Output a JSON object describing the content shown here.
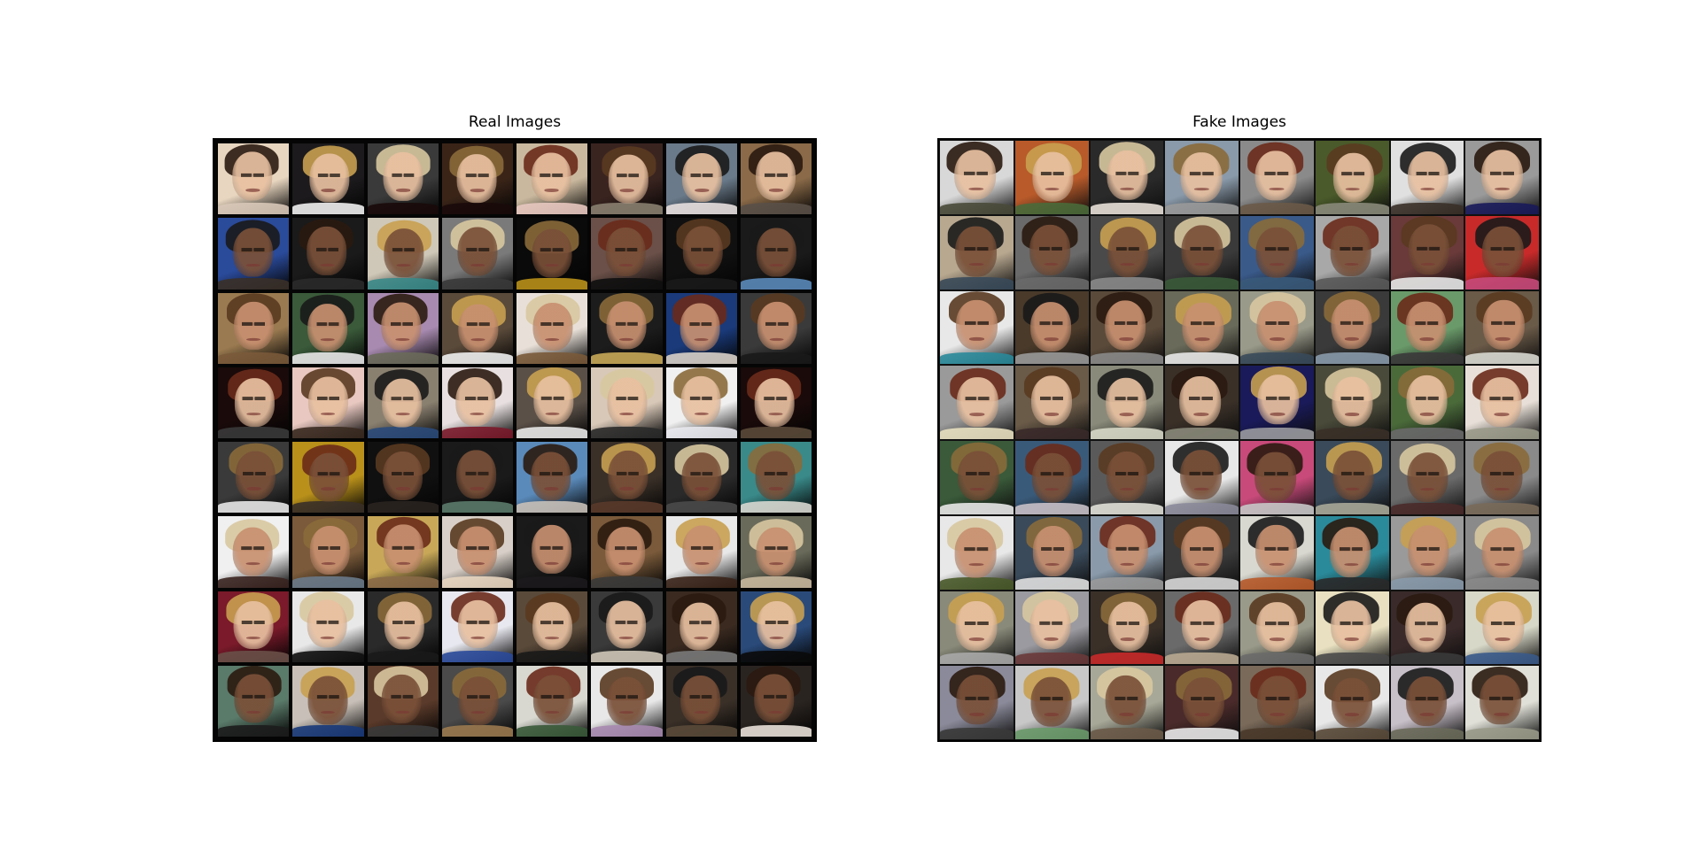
{
  "panels": {
    "real": {
      "title": "Real Images"
    },
    "fake": {
      "title": "Fake Images"
    }
  },
  "grid": {
    "rows": 8,
    "cols": 8
  },
  "colors": {
    "real_tiles": [
      [
        "#e8d6c0",
        "#1c1a1c",
        "#3a3a3a",
        "#3a2418",
        "#c9b89e",
        "#3a2420",
        "#6a7a8a",
        "#8a6a48"
      ],
      [
        "#2a4a9a",
        "#1a1a1a",
        "#cfc8b8",
        "#7a7a7a",
        "#0a0a0a",
        "#6a5048",
        "#101010",
        "#1a1a1a"
      ],
      [
        "#9a7a50",
        "#3a5a3a",
        "#a88ab0",
        "#5a4a3a",
        "#e8e0d8",
        "#1c1c1c",
        "#1a3a7a",
        "#3a3a3a"
      ],
      [
        "#1a0a0a",
        "#e8c8c0",
        "#8a8070",
        "#e8e0e0",
        "#5a5048",
        "#d8c8b8",
        "#f0f0f0",
        "#1a0a0a"
      ],
      [
        "#3a3a3a",
        "#b8901a",
        "#101010",
        "#1a1a1a",
        "#5a8aba",
        "#3a3028",
        "#2a2a2a",
        "#3a8a8a"
      ],
      [
        "#f0f0f0",
        "#7a5a3a",
        "#c8a858",
        "#d8d0c8",
        "#1a1a1a",
        "#7a5a3a",
        "#e8e8e8",
        "#6a6a5a"
      ],
      [
        "#7a1a2a",
        "#e8e8e8",
        "#2a2a2a",
        "#e8e8f0",
        "#5a4a3a",
        "#3a3a3a",
        "#3a2a20",
        "#2a4a7a"
      ],
      [
        "#5a7a6a",
        "#c8c0b8",
        "#5a3a2a",
        "#4a4a4a",
        "#d8d8d0",
        "#e8e8e8",
        "#3a3028",
        "#2a2420"
      ]
    ],
    "fake_tiles": [
      [
        "#d8d8d8",
        "#b85a2a",
        "#2a2a2a",
        "#8a9aaa",
        "#8a8a8a",
        "#4a5a2a",
        "#e0e0e0",
        "#9a9a9a"
      ],
      [
        "#b8a890",
        "#6a6a6a",
        "#4a4a4a",
        "#3a3a3a",
        "#3a5a8a",
        "#a8a8a8",
        "#6a3a3a",
        "#c82a2a"
      ],
      [
        "#e8e8e8",
        "#4a3a2a",
        "#5a4a3a",
        "#6a6a5a",
        "#9a9a8a",
        "#3a3a3a",
        "#6a9a6a",
        "#6a5a48"
      ],
      [
        "#9a9a9a",
        "#6a5a48",
        "#8a8a7a",
        "#3a3028",
        "#1a1a5a",
        "#4a4a3a",
        "#4a6a3a",
        "#e8e0d8"
      ],
      [
        "#3a5a3a",
        "#3a5a7a",
        "#5a5a5a",
        "#e8e8e8",
        "#c84a7a",
        "#3a4a5a",
        "#6a6a6a",
        "#8a8a8a"
      ],
      [
        "#e8e8e8",
        "#3a4a5a",
        "#8a9aaa",
        "#3a3a3a",
        "#d8d8d0",
        "#2a8a9a",
        "#9a9a9a",
        "#8a8a8a"
      ],
      [
        "#8a8a7a",
        "#9a9aa0",
        "#3a3028",
        "#6a6a6a",
        "#9a9a8a",
        "#e8e0c0",
        "#3a2a2a",
        "#d8d8c8"
      ],
      [
        "#8a8a9a",
        "#c8c8c8",
        "#a8a898",
        "#4a2a2a",
        "#7a6a5a",
        "#e8e8e8",
        "#c8c0c8",
        "#e0e0d8"
      ]
    ],
    "skin_tones": [
      "#e8c0a0",
      "#d8a888",
      "#c89070",
      "#a87050",
      "#7a5038",
      "#f0d0b8"
    ],
    "hair_tones": [
      "#2a1a10",
      "#5a3a20",
      "#8a6a3a",
      "#c8a050",
      "#1a1a1a",
      "#6a2a1a",
      "#d8c8a0"
    ]
  }
}
